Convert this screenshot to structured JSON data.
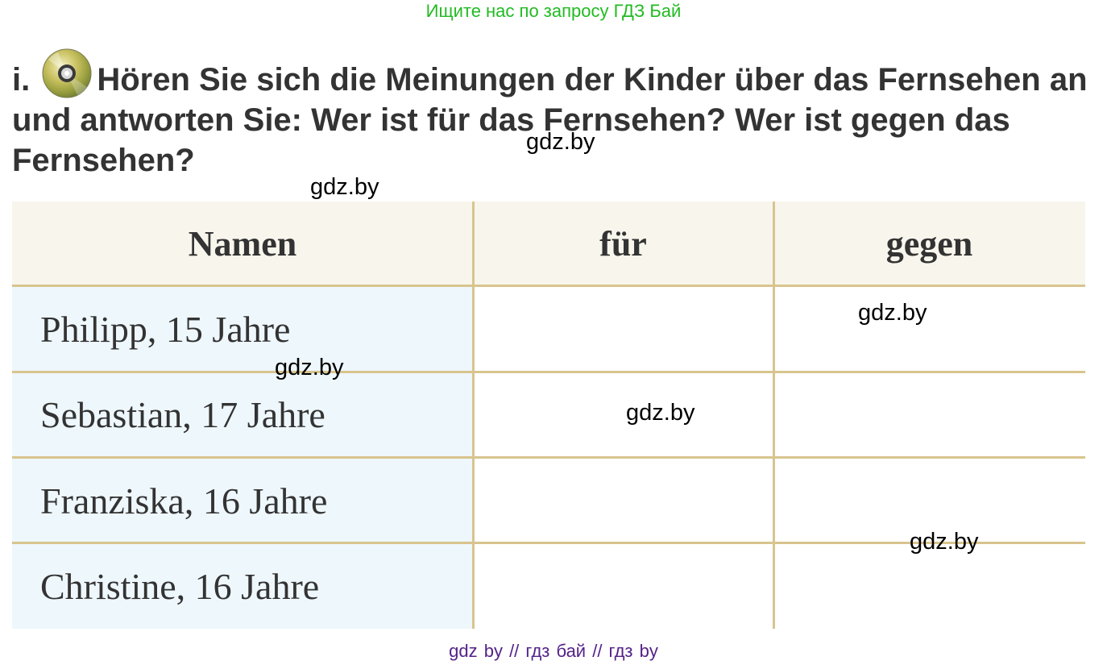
{
  "banner": "Ищите нас по запросу ГДЗ Бай",
  "task": {
    "number": "i.",
    "icon": "cd-audio-icon",
    "text": "Hören Sie sich die Meinungen der Kinder über das Fernsehen an und antworten Sie: Wer ist für das Fernsehen? Wer ist gegen das Fernsehen?"
  },
  "table": {
    "headers": [
      "Namen",
      "für",
      "gegen"
    ],
    "rows": [
      {
        "name": "Philipp, 15 Jahre",
        "fuer": "",
        "gegen": ""
      },
      {
        "name": "Sebastian, 17 Jahre",
        "fuer": "",
        "gegen": ""
      },
      {
        "name": "Franziska, 16 Jahre",
        "fuer": "",
        "gegen": ""
      },
      {
        "name": "Christine, 16 Jahre",
        "fuer": "",
        "gegen": ""
      }
    ]
  },
  "watermarks": [
    "gdz.by",
    "gdz.by",
    "gdz.by",
    "gdz.by",
    "gdz.by",
    "gdz.by"
  ],
  "footer": "gdz by  //  гдз бай  //  гдз by",
  "colors": {
    "banner": "#22bb22",
    "footer": "#552288",
    "table_lines": "#d8c48e",
    "header_bg": "#f8f5ec",
    "name_bg": "#eef7fc"
  }
}
